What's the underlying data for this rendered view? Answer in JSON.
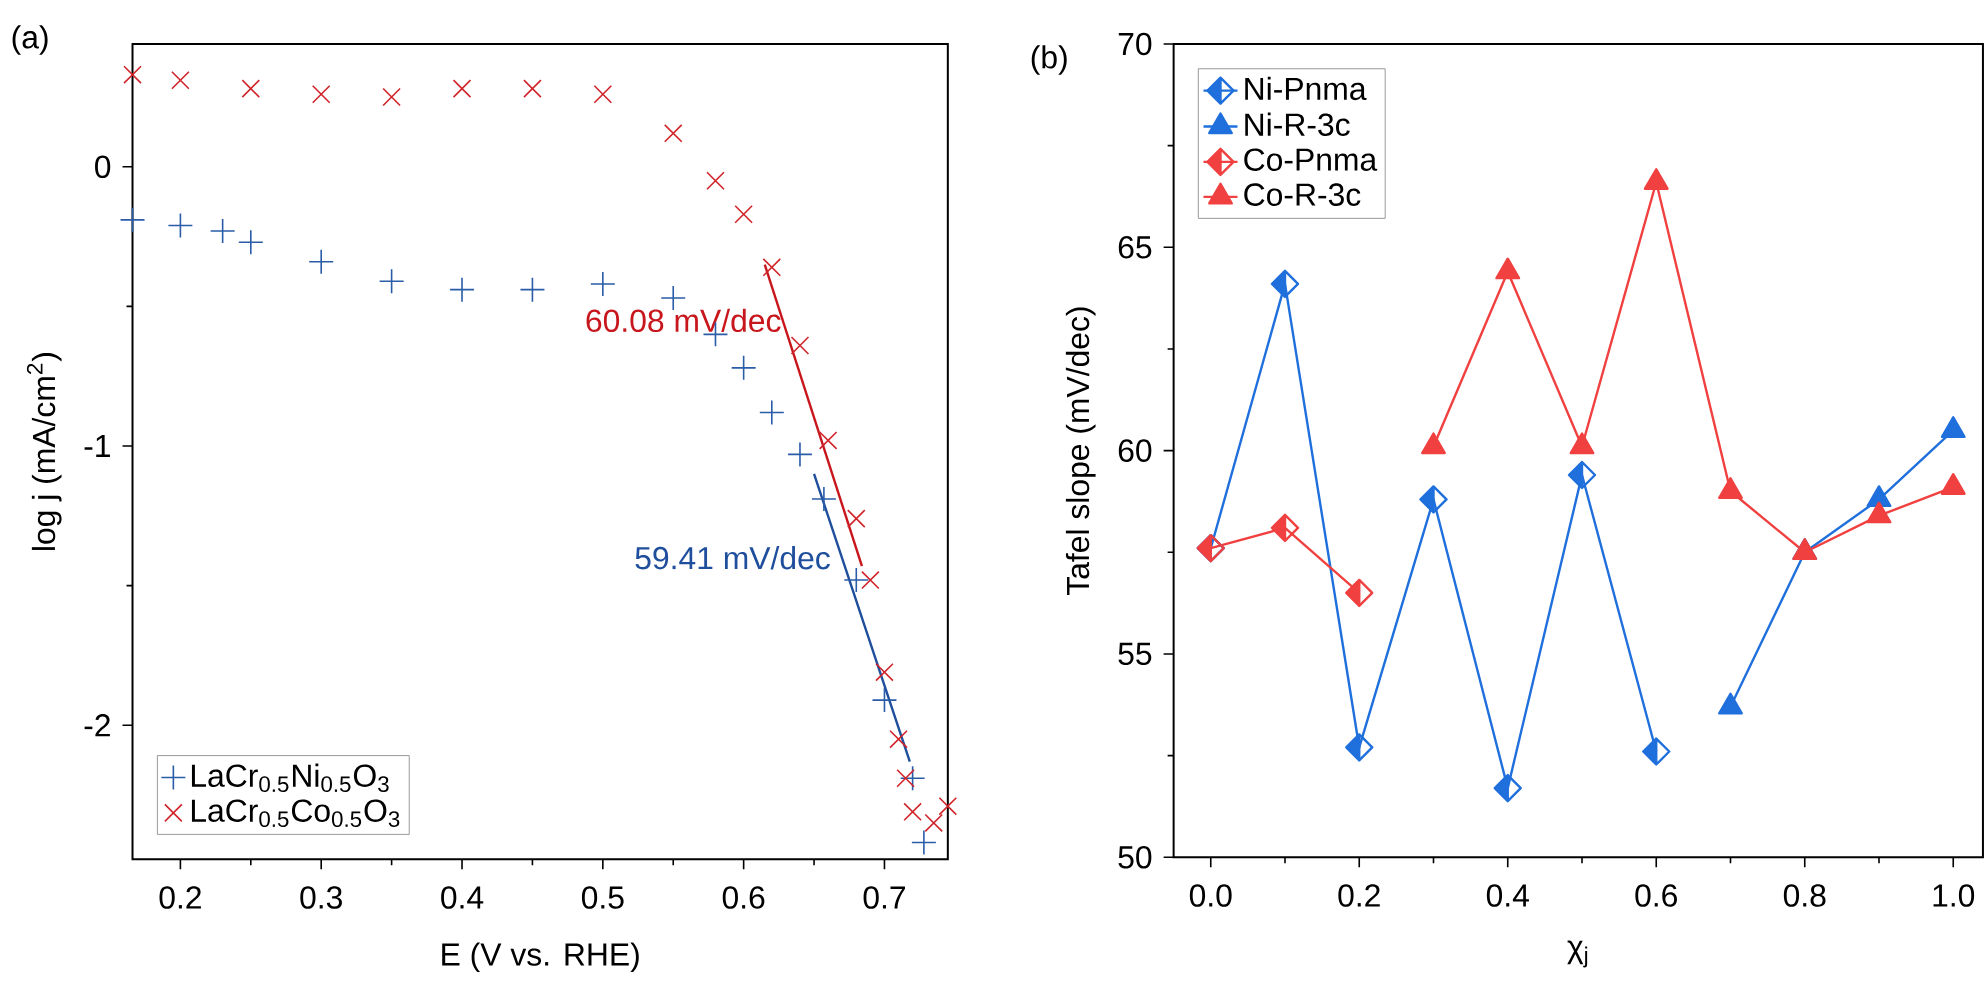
{
  "chart_data": [
    {
      "type": "scatter",
      "title": "(a)",
      "xlabel": "E (V vs. RHE)",
      "ylabel": "log j (mA/cm$^{2}$)",
      "xlim": [
        0.166,
        0.745
      ],
      "ylim": [
        -2.48,
        0.44
      ],
      "xticks": [
        0.2,
        0.3,
        0.4,
        0.5,
        0.6,
        0.7
      ],
      "yticks": [
        -2,
        -1,
        0
      ],
      "legend": "bottom left",
      "grid": false,
      "series": [
        {
          "name": "LaCr$_{0.5}$Ni$_{0.5}$O$_{3}$",
          "color": "#2a5ca8",
          "marker": "plus",
          "x": [
            0.166,
            0.2,
            0.23,
            0.25,
            0.3,
            0.35,
            0.4,
            0.45,
            0.5,
            0.55,
            0.58,
            0.6,
            0.62,
            0.64,
            0.657,
            0.68,
            0.7,
            0.72,
            0.728
          ],
          "values": [
            -0.19,
            -0.21,
            -0.23,
            -0.27,
            -0.34,
            -0.41,
            -0.44,
            -0.44,
            -0.42,
            -0.47,
            -0.6,
            -0.72,
            -0.88,
            -1.03,
            -1.19,
            -1.48,
            -1.91,
            -2.19,
            -2.42
          ]
        },
        {
          "name": "LaCr$_{0.5}$Co$_{0.5}$O$_{3}$",
          "color": "#d0242a",
          "marker": "cross",
          "x": [
            0.166,
            0.2,
            0.25,
            0.3,
            0.35,
            0.4,
            0.45,
            0.5,
            0.55,
            0.58,
            0.6,
            0.62,
            0.64,
            0.66,
            0.68,
            0.69,
            0.7,
            0.71,
            0.715,
            0.72,
            0.735,
            0.745
          ],
          "values": [
            0.33,
            0.31,
            0.28,
            0.26,
            0.25,
            0.28,
            0.28,
            0.26,
            0.12,
            -0.05,
            -0.17,
            -0.36,
            -0.64,
            -0.98,
            -1.26,
            -1.48,
            -1.81,
            -2.05,
            -2.19,
            -2.31,
            -2.35,
            -2.29
          ]
        },
        {
          "type": "line",
          "color": "#c8161d",
          "x": [
            0.615,
            0.684
          ],
          "values": [
            -0.35,
            -1.43
          ]
        },
        {
          "type": "line",
          "color": "#1f4f9c",
          "x": [
            0.65,
            0.718
          ],
          "values": [
            -1.1,
            -2.13
          ]
        }
      ],
      "annotations": [
        {
          "text": "60.08 mV/dec",
          "x": 0.63,
          "y": -0.55
        },
        {
          "text": "59.41 mV/dec",
          "x": 0.665,
          "y": -1.4
        }
      ]
    },
    {
      "type": "line",
      "title": "(b)",
      "xlabel": "χ$_{j}$",
      "ylabel": "Tafel slope (mV/dec)",
      "xlim": [
        -0.05,
        1.04
      ],
      "ylim": [
        50,
        70
      ],
      "xticks": [
        {
          "value": 0,
          "label": "0.0"
        },
        0.2,
        0.4,
        0.6,
        0.8,
        {
          "value": 1,
          "label": "1.0"
        }
      ],
      "yticks": [
        50,
        55,
        60,
        65,
        70
      ],
      "legend": "top left",
      "grid": false,
      "series": [
        {
          "name": "Ni-Pnma",
          "color": "#1f6fdc",
          "marker": "diamond",
          "x": [
            0,
            0.1,
            0.2,
            0.3,
            0.4,
            0.5,
            0.6
          ],
          "values": [
            57.6,
            64.1,
            52.7,
            58.8,
            51.7,
            59.4,
            52.6
          ]
        },
        {
          "name": "Ni-R-3c",
          "color": "#1f6fdc",
          "marker": "triangle",
          "x": [
            0.7,
            0.8,
            0.9,
            1.0
          ],
          "values": [
            53.7,
            57.5,
            58.8,
            60.5
          ]
        },
        {
          "name": "Co-Pnma",
          "color": "#f04040",
          "marker": "diamond",
          "x": [
            0,
            0.1,
            0.2
          ],
          "values": [
            57.6,
            58.1,
            56.5
          ]
        },
        {
          "name": "Co-R-3c",
          "color": "#f04040",
          "marker": "triangle",
          "x": [
            0.3,
            0.4,
            0.5,
            0.6,
            0.7,
            0.8,
            0.9,
            1.0
          ],
          "values": [
            60.1,
            64.4,
            60.1,
            66.6,
            59.0,
            57.5,
            58.4,
            59.1
          ]
        }
      ]
    }
  ]
}
